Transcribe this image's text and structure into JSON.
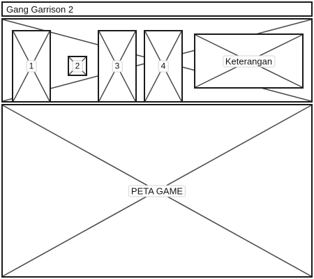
{
  "window": {
    "title": "Gang Garrison 2"
  },
  "toolbar": {
    "slots": [
      {
        "label": "1"
      },
      {
        "label": "2"
      },
      {
        "label": "3"
      },
      {
        "label": "4"
      }
    ],
    "info_panel": {
      "label": "Keterangan"
    }
  },
  "main": {
    "map_label": "PETA GAME"
  },
  "colors": {
    "stroke": "#1a1a1a",
    "placeholder_line": "#4a4a4a",
    "background": "#ffffff"
  }
}
